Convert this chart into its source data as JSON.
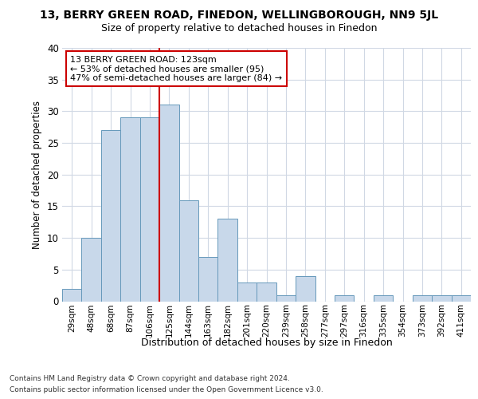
{
  "title_line1": "13, BERRY GREEN ROAD, FINEDON, WELLINGBOROUGH, NN9 5JL",
  "title_line2": "Size of property relative to detached houses in Finedon",
  "xlabel": "Distribution of detached houses by size in Finedon",
  "ylabel": "Number of detached properties",
  "categories": [
    "29sqm",
    "48sqm",
    "68sqm",
    "87sqm",
    "106sqm",
    "125sqm",
    "144sqm",
    "163sqm",
    "182sqm",
    "201sqm",
    "220sqm",
    "239sqm",
    "258sqm",
    "277sqm",
    "297sqm",
    "316sqm",
    "335sqm",
    "354sqm",
    "373sqm",
    "392sqm",
    "411sqm"
  ],
  "values": [
    2,
    10,
    27,
    29,
    29,
    31,
    16,
    7,
    13,
    3,
    3,
    1,
    4,
    0,
    1,
    0,
    1,
    0,
    1,
    1,
    1
  ],
  "bar_color": "#c8d8ea",
  "bar_edge_color": "#6699bb",
  "vline_index": 5,
  "vline_color": "#cc0000",
  "annotation_text": "13 BERRY GREEN ROAD: 123sqm\n← 53% of detached houses are smaller (95)\n47% of semi-detached houses are larger (84) →",
  "annotation_box_edgecolor": "#cc0000",
  "ylim_max": 40,
  "yticks": [
    0,
    5,
    10,
    15,
    20,
    25,
    30,
    35,
    40
  ],
  "footer_line1": "Contains HM Land Registry data © Crown copyright and database right 2024.",
  "footer_line2": "Contains public sector information licensed under the Open Government Licence v3.0.",
  "fig_bg": "#ffffff",
  "plot_bg": "#ffffff",
  "grid_color": "#d0d8e4"
}
